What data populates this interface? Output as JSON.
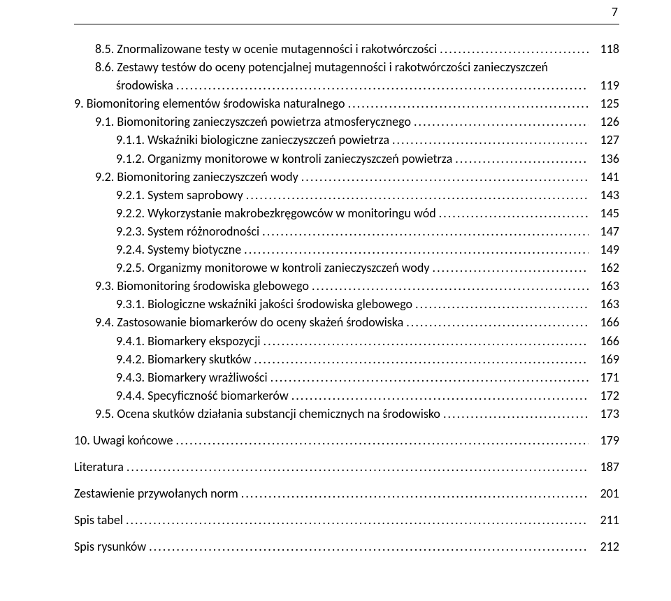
{
  "page_number": "7",
  "entries": [
    {
      "indent": 1,
      "num": "8.5.",
      "title": "Znormalizowane testy w ocenie mutagenności i rakotwórczości",
      "page": "118",
      "wrap": false
    },
    {
      "indent": 1,
      "num": "8.6.",
      "title_line1": "Zestawy testów do oceny potencjalnej mutagenności i rakotwórczości zanieczyszczeń",
      "title_line2": "środowiska",
      "page": "119",
      "wrap": true
    },
    {
      "indent": 0,
      "num": "9.",
      "title": "Biomonitoring elementów środowiska naturalnego",
      "page": "125",
      "wrap": false
    },
    {
      "indent": 1,
      "num": "9.1.",
      "title": "Biomonitoring zanieczyszczeń powietrza atmosferycznego",
      "page": "126",
      "wrap": false
    },
    {
      "indent": 2,
      "num": "9.1.1.",
      "title": "Wskaźniki biologiczne zanieczyszczeń powietrza",
      "page": "127",
      "wrap": false
    },
    {
      "indent": 2,
      "num": "9.1.2.",
      "title": "Organizmy monitorowe w kontroli zanieczyszczeń powietrza",
      "page": "136",
      "wrap": false
    },
    {
      "indent": 1,
      "num": "9.2.",
      "title": "Biomonitoring zanieczyszczeń wody",
      "page": "141",
      "wrap": false
    },
    {
      "indent": 2,
      "num": "9.2.1.",
      "title": "System saprobowy",
      "page": "143",
      "wrap": false
    },
    {
      "indent": 2,
      "num": "9.2.2.",
      "title": "Wykorzystanie makrobezkręgowców w monitoringu wód",
      "page": "145",
      "wrap": false
    },
    {
      "indent": 2,
      "num": "9.2.3.",
      "title": "System różnorodności",
      "page": "147",
      "wrap": false
    },
    {
      "indent": 2,
      "num": "9.2.4.",
      "title": "Systemy biotyczne",
      "page": "149",
      "wrap": false
    },
    {
      "indent": 2,
      "num": "9.2.5.",
      "title": "Organizmy monitorowe  w kontroli zanieczyszczeń wody",
      "page": "162",
      "wrap": false
    },
    {
      "indent": 1,
      "num": "9.3.",
      "title": "Biomonitoring środowiska glebowego",
      "page": "163",
      "wrap": false
    },
    {
      "indent": 2,
      "num": "9.3.1.",
      "title": "Biologiczne wskaźniki jakości środowiska glebowego",
      "page": "163",
      "wrap": false
    },
    {
      "indent": 1,
      "num": "9.4.",
      "title": "Zastosowanie biomarkerów do oceny skażeń środowiska",
      "page": "166",
      "wrap": false
    },
    {
      "indent": 2,
      "num": "9.4.1.",
      "title": "Biomarkery ekspozycji",
      "page": "166",
      "wrap": false
    },
    {
      "indent": 2,
      "num": "9.4.2.",
      "title": "Biomarkery skutków",
      "page": "169",
      "wrap": false
    },
    {
      "indent": 2,
      "num": "9.4.3.",
      "title": "Biomarkery wrażliwości",
      "page": "171",
      "wrap": false
    },
    {
      "indent": 2,
      "num": "9.4.4.",
      "title": "Specyficzność biomarkerów",
      "page": "172",
      "wrap": false
    },
    {
      "indent": 1,
      "num": "9.5.",
      "title": "Ocena skutków działania substancji chemicznych na środowisko",
      "page": "173",
      "wrap": false
    },
    {
      "gap": true
    },
    {
      "indent": 0,
      "num": "10.",
      "title": "Uwagi końcowe",
      "page": "179",
      "wrap": false
    },
    {
      "gap": true
    },
    {
      "indent": 0,
      "num": "",
      "title": "Literatura",
      "page": "187",
      "wrap": false
    },
    {
      "gap": true
    },
    {
      "indent": 0,
      "num": "",
      "title": "Zestawienie przywołanych norm",
      "page": "201",
      "wrap": false
    },
    {
      "gap": true
    },
    {
      "indent": 0,
      "num": "",
      "title": "Spis tabel",
      "page": "211",
      "wrap": false
    },
    {
      "gap": true
    },
    {
      "indent": 0,
      "num": "",
      "title": "Spis rysunków",
      "page": "212",
      "wrap": false
    }
  ]
}
